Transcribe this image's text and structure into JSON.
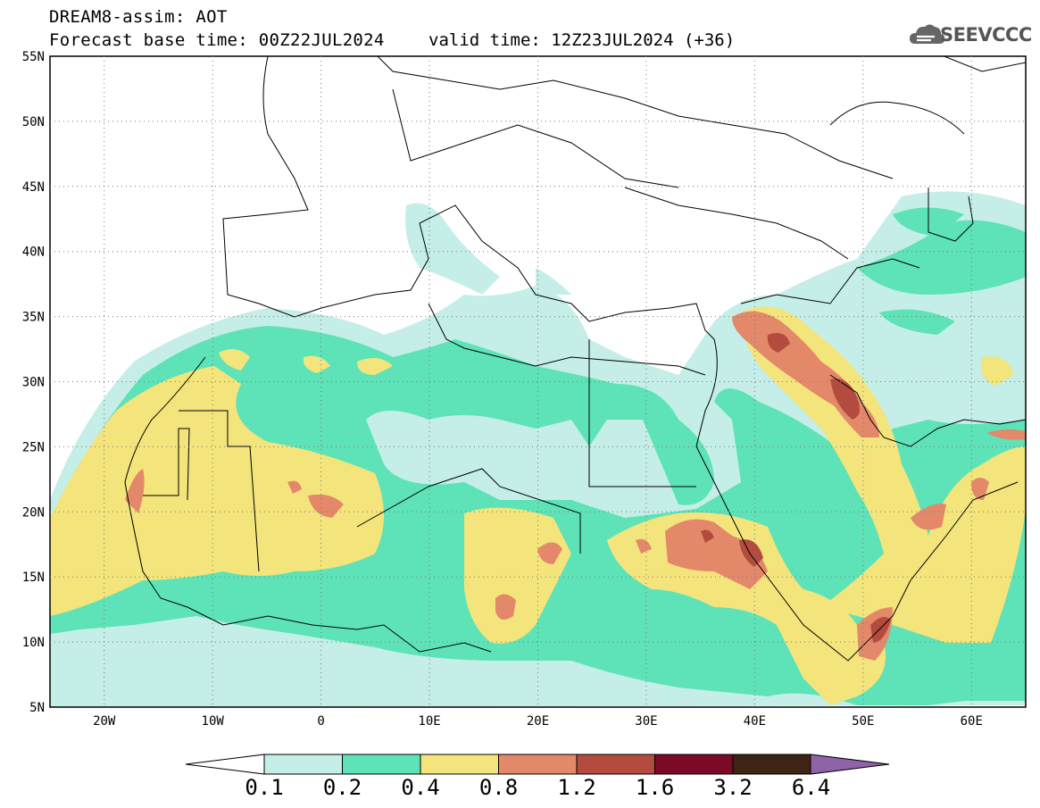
{
  "header": {
    "line1": "DREAM8-assim: AOT",
    "line2": "Forecast base time: 00Z22JUL2024",
    "valid": "valid time: 12Z23JUL2024 (+36)"
  },
  "logo": {
    "text": "SEEVCCC",
    "icon": "cloud-icon"
  },
  "map": {
    "lon_range": [
      -25,
      65
    ],
    "lat_range": [
      5,
      55
    ],
    "lat_labels": [
      "55N",
      "50N",
      "45N",
      "40N",
      "35N",
      "30N",
      "25N",
      "20N",
      "15N",
      "10N",
      "5N"
    ],
    "lon_labels": [
      "20W",
      "10W",
      "0",
      "10E",
      "20E",
      "30E",
      "40E",
      "50E",
      "60E"
    ],
    "grid": true
  },
  "colorbar": {
    "labels": [
      "0.1",
      "0.2",
      "0.4",
      "0.8",
      "1.2",
      "1.6",
      "3.2",
      "6.4"
    ],
    "colors": [
      "#c4eee7",
      "#5ee3b8",
      "#f3e47c",
      "#e3896a",
      "#b34b3e",
      "#7a0a25",
      "#3d2413",
      "#8f63a6"
    ],
    "under_color": "#ffffff"
  }
}
